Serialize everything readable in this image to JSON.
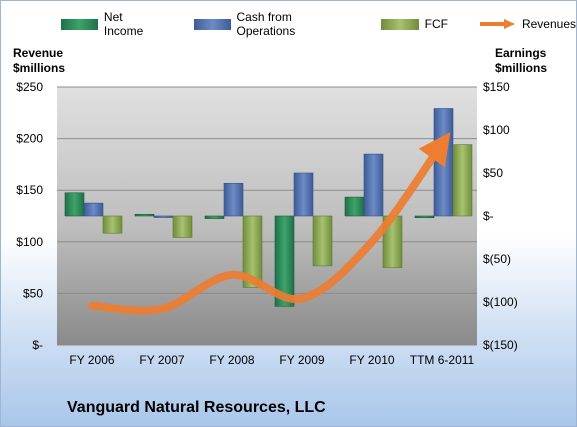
{
  "legend": {
    "net_income": "Net Income",
    "cfo": "Cash from Operations",
    "fcf": "FCF",
    "revenues": "Revenues"
  },
  "left_axis_title": [
    "Revenue",
    "$millions"
  ],
  "right_axis_title": [
    "Earnings",
    "$millions"
  ],
  "company": "Vanguard Natural Resources, LLC",
  "colors": {
    "net_income": "#2e8b57",
    "cfo": "#4f6fad",
    "fcf": "#8cab55",
    "revenues": "#ed7d31",
    "plot_bg_top": "#dcdcdc",
    "plot_bg_bottom": "#8a8a8a"
  },
  "chart_data": {
    "type": "bar",
    "categories": [
      "FY 2006",
      "FY 2007",
      "FY 2008",
      "FY 2009",
      "FY 2010",
      "TTM 6-2011"
    ],
    "left_axis": {
      "label": "Revenue $millions",
      "ylim": [
        0,
        250
      ],
      "ticks": [
        0,
        50,
        100,
        150,
        200,
        250
      ],
      "tick_labels": [
        "$-",
        "$50",
        "$100",
        "$150",
        "$200",
        "$250"
      ]
    },
    "right_axis": {
      "label": "Earnings $millions",
      "ylim": [
        -150,
        150
      ],
      "ticks": [
        -150,
        -100,
        -50,
        0,
        50,
        100,
        150
      ],
      "tick_labels": [
        "$(150)",
        "$(100)",
        "$(50)",
        "$-",
        "$50",
        "$100",
        "$150"
      ]
    },
    "series": [
      {
        "name": "Net Income",
        "axis": "right",
        "type": "bar",
        "values": [
          27,
          2,
          -3,
          -105,
          22,
          -2
        ]
      },
      {
        "name": "Cash from Operations",
        "axis": "right",
        "type": "bar",
        "values": [
          15,
          -1,
          38,
          50,
          72,
          125
        ]
      },
      {
        "name": "FCF",
        "axis": "right",
        "type": "bar",
        "values": [
          -20,
          -25,
          -83,
          -58,
          -60,
          83
        ]
      },
      {
        "name": "Revenues",
        "axis": "left",
        "type": "line",
        "values": [
          38,
          35,
          68,
          45,
          100,
          195
        ]
      }
    ],
    "grid": true,
    "legend_position": "top"
  }
}
